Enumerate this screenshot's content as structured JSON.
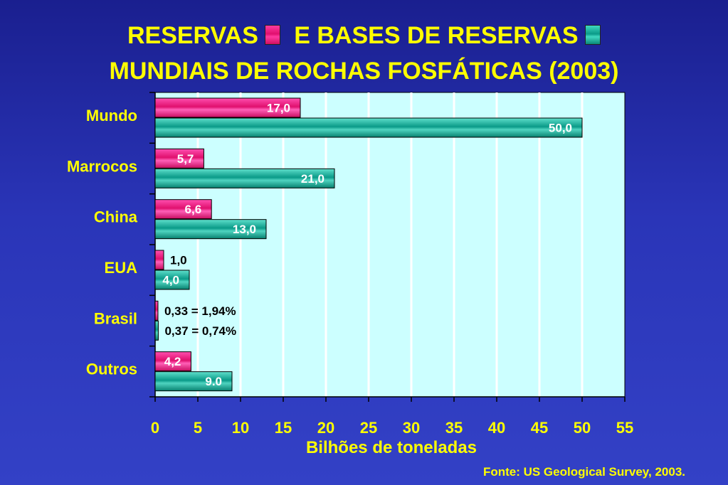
{
  "title": {
    "line1_a": "RESERVAS",
    "line1_b": "E BASES DE RESERVAS",
    "line2": "MUNDIAIS DE ROCHAS FOSFÁTICAS  (2003)"
  },
  "colors": {
    "reservas": "#e8157a",
    "bases": "#10a08f",
    "plot_bg": "#ccffff",
    "text": "#ffff00"
  },
  "source": "Fonte: US Geological Survey, 2003.",
  "chart_data": {
    "type": "bar",
    "orientation": "horizontal",
    "categories": [
      "Mundo",
      "Marrocos",
      "China",
      "EUA",
      "Brasil",
      "Outros"
    ],
    "series": [
      {
        "name": "RESERVAS",
        "values": [
          17.0,
          5.7,
          6.6,
          1.0,
          0.33,
          4.2
        ],
        "labels": [
          "17,0",
          "5,7",
          "6,6",
          "1,0",
          "0,33 = 1,94%",
          "4,2"
        ]
      },
      {
        "name": "BASES DE RESERVAS",
        "values": [
          50.0,
          21.0,
          13.0,
          4.0,
          0.37,
          9.0
        ],
        "labels": [
          "50,0",
          "21,0",
          "13,0",
          "4,0",
          "0,37 = 0,74%",
          "9.0"
        ]
      }
    ],
    "xlabel": "Bilhões de toneladas",
    "xlim": [
      0,
      55
    ],
    "xticks": [
      "0",
      "5",
      "10",
      "15",
      "20",
      "25",
      "30",
      "35",
      "40",
      "45",
      "50",
      "55"
    ],
    "grid": "vertical",
    "legend": "inline in title"
  }
}
